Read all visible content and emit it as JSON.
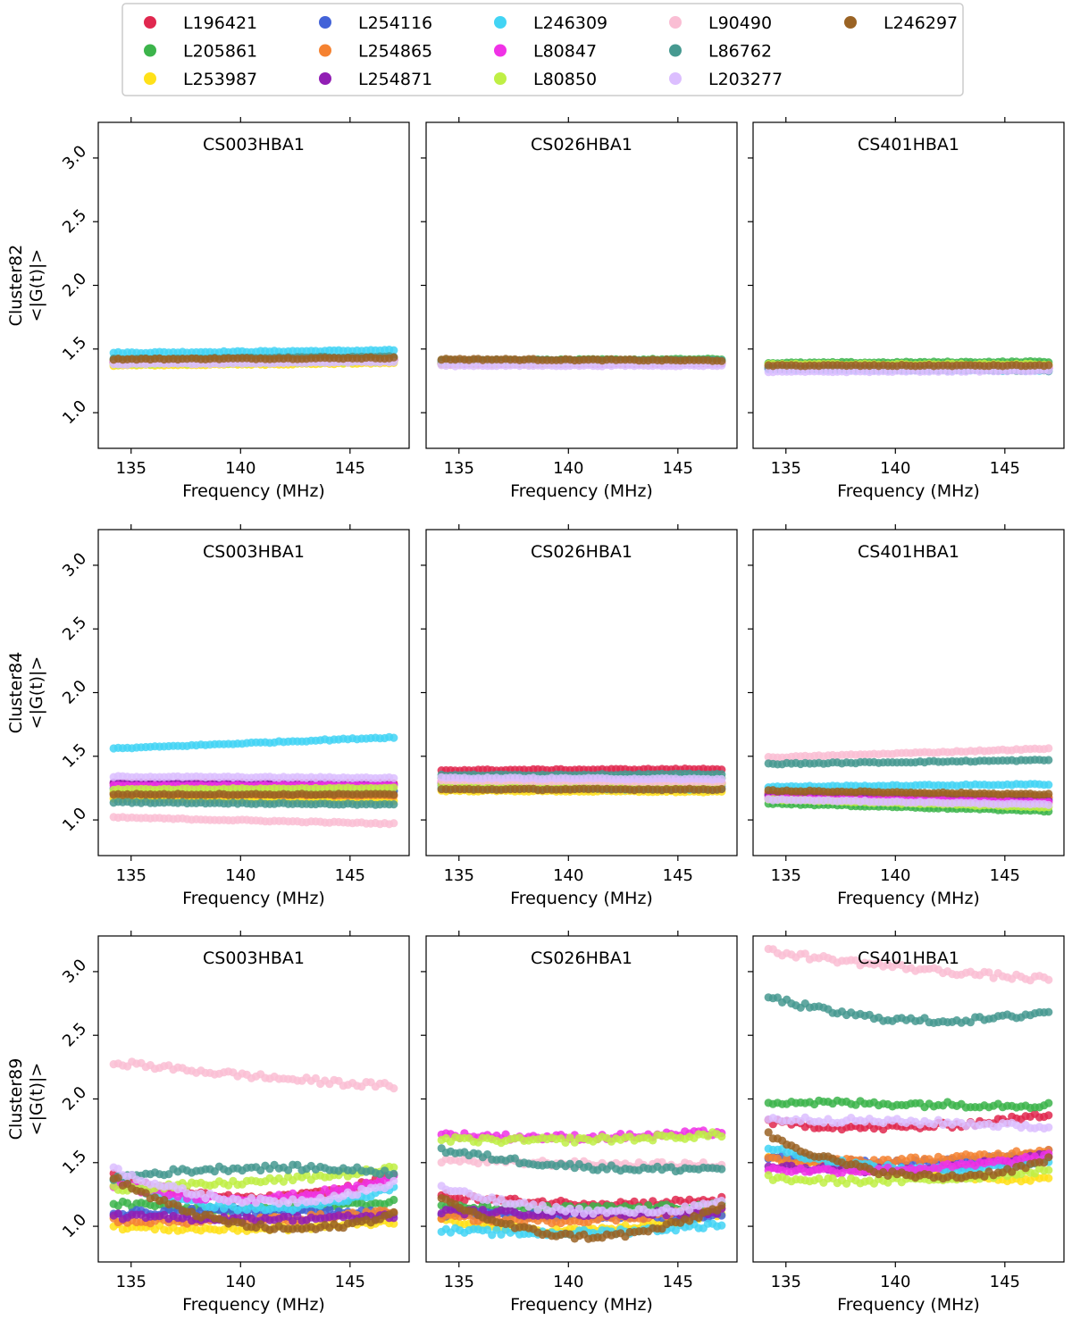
{
  "figure": {
    "freq_label": "Frequency (MHz)",
    "ylabel_suffix": "<|G(t)|>",
    "x_ticks": [
      135,
      140,
      145
    ],
    "y_ticks": [
      1.0,
      1.5,
      2.0,
      2.5,
      3.0
    ],
    "xlim": [
      133.5,
      147.7
    ],
    "ylim": [
      0.72,
      3.28
    ]
  },
  "legend": {
    "placement": "top-center",
    "entries": [
      {
        "name": "L196421",
        "color": "#e0284f"
      },
      {
        "name": "L205861",
        "color": "#3cb44b"
      },
      {
        "name": "L253987",
        "color": "#ffe119"
      },
      {
        "name": "L254116",
        "color": "#4363d8"
      },
      {
        "name": "L254865",
        "color": "#f58231"
      },
      {
        "name": "L254871",
        "color": "#911eb4"
      },
      {
        "name": "L246309",
        "color": "#42d4f4"
      },
      {
        "name": "L80847",
        "color": "#f032e6"
      },
      {
        "name": "L80850",
        "color": "#bfef45"
      },
      {
        "name": "L90490",
        "color": "#fabed4"
      },
      {
        "name": "L86762",
        "color": "#469990"
      },
      {
        "name": "L203277",
        "color": "#dcbeff"
      },
      {
        "name": "L246297",
        "color": "#9a6324"
      }
    ]
  },
  "chart_data": {
    "type": "scatter",
    "x_range_mhz": [
      134.2,
      147.0
    ],
    "rows": [
      {
        "cluster": "Cluster82",
        "panels": [
          {
            "title": "CS003HBA1",
            "series": {
              "L196421": [
                1.4,
                1.42
              ],
              "L205861": [
                1.41,
                1.43
              ],
              "L253987": [
                1.37,
                1.39
              ],
              "L254116": [
                1.4,
                1.42
              ],
              "L254865": [
                1.39,
                1.41
              ],
              "L254871": [
                1.4,
                1.42
              ],
              "L246309": [
                1.47,
                1.49
              ],
              "L80847": [
                1.4,
                1.41
              ],
              "L80850": [
                1.38,
                1.4
              ],
              "L90490": [
                1.41,
                1.43
              ],
              "L86762": [
                1.42,
                1.44
              ],
              "L203277": [
                1.38,
                1.4
              ],
              "L246297": [
                1.42,
                1.43
              ]
            }
          },
          {
            "title": "CS026HBA1",
            "series": {
              "L196421": [
                1.4,
                1.4
              ],
              "L205861": [
                1.41,
                1.42
              ],
              "L253987": [
                1.38,
                1.39
              ],
              "L254116": [
                1.39,
                1.4
              ],
              "L254865": [
                1.4,
                1.4
              ],
              "L254871": [
                1.39,
                1.39
              ],
              "L246309": [
                1.4,
                1.41
              ],
              "L80847": [
                1.39,
                1.39
              ],
              "L80850": [
                1.39,
                1.4
              ],
              "L90490": [
                1.4,
                1.4
              ],
              "L86762": [
                1.41,
                1.41
              ],
              "L203277": [
                1.37,
                1.37
              ],
              "L246297": [
                1.42,
                1.41
              ]
            }
          },
          {
            "title": "CS401HBA1",
            "series": {
              "L196421": [
                1.36,
                1.36
              ],
              "L205861": [
                1.39,
                1.4
              ],
              "L253987": [
                1.37,
                1.37
              ],
              "L254116": [
                1.35,
                1.35
              ],
              "L254865": [
                1.37,
                1.37
              ],
              "L254871": [
                1.35,
                1.35
              ],
              "L246309": [
                1.34,
                1.33
              ],
              "L80847": [
                1.35,
                1.35
              ],
              "L80850": [
                1.38,
                1.38
              ],
              "L90490": [
                1.36,
                1.36
              ],
              "L86762": [
                1.35,
                1.33
              ],
              "L203277": [
                1.32,
                1.33
              ],
              "L246297": [
                1.37,
                1.37
              ]
            }
          }
        ]
      },
      {
        "cluster": "Cluster84",
        "panels": [
          {
            "title": "CS003HBA1",
            "series": {
              "L196421": [
                1.29,
                1.29
              ],
              "L205861": [
                1.21,
                1.23
              ],
              "L253987": [
                1.17,
                1.15
              ],
              "L254116": [
                1.25,
                1.23
              ],
              "L254865": [
                1.21,
                1.19
              ],
              "L254871": [
                1.29,
                1.28
              ],
              "L246309": [
                1.56,
                1.65
              ],
              "L80847": [
                1.27,
                1.27
              ],
              "L80850": [
                1.24,
                1.25
              ],
              "L90490": [
                1.02,
                0.97
              ],
              "L86762": [
                1.14,
                1.12
              ],
              "L203277": [
                1.34,
                1.33
              ],
              "L246297": [
                1.2,
                1.2
              ]
            }
          },
          {
            "title": "CS026HBA1",
            "series": {
              "L196421": [
                1.39,
                1.4
              ],
              "L205861": [
                1.33,
                1.33
              ],
              "L253987": [
                1.23,
                1.22
              ],
              "L254116": [
                1.27,
                1.26
              ],
              "L254865": [
                1.25,
                1.25
              ],
              "L254871": [
                1.29,
                1.29
              ],
              "L246309": [
                1.25,
                1.24
              ],
              "L80847": [
                1.3,
                1.29
              ],
              "L80850": [
                1.28,
                1.28
              ],
              "L90490": [
                1.31,
                1.3
              ],
              "L86762": [
                1.35,
                1.36
              ],
              "L203277": [
                1.33,
                1.32
              ],
              "L246297": [
                1.24,
                1.24
              ]
            }
          },
          {
            "title": "CS401HBA1",
            "series": {
              "L196421": [
                1.21,
                1.18
              ],
              "L205861": [
                1.13,
                1.07
              ],
              "L253987": [
                1.2,
                1.13
              ],
              "L254116": [
                1.2,
                1.16
              ],
              "L254865": [
                1.22,
                1.18
              ],
              "L254871": [
                1.19,
                1.15
              ],
              "L246309": [
                1.26,
                1.28
              ],
              "L80847": [
                1.17,
                1.14
              ],
              "L80850": [
                1.16,
                1.1
              ],
              "L90490": [
                1.49,
                1.56
              ],
              "L86762": [
                1.44,
                1.47
              ],
              "L203277": [
                1.16,
                1.12
              ],
              "L246297": [
                1.23,
                1.2
              ]
            }
          }
        ]
      },
      {
        "cluster": "Cluster89",
        "panels": [
          {
            "title": "CS003HBA1",
            "series": {
              "L196421": [
                1.4,
                1.22,
                1.4
              ],
              "L205861": [
                1.18,
                1.14,
                1.2
              ],
              "L253987": [
                1.0,
                0.98,
                1.04
              ],
              "L254116": [
                1.1,
                1.12,
                1.1
              ],
              "L254865": [
                1.05,
                1.05,
                1.12
              ],
              "L254871": [
                1.08,
                1.06,
                1.08
              ],
              "L246309": [
                1.36,
                1.14,
                1.3
              ],
              "L80847": [
                1.33,
                1.22,
                1.38
              ],
              "L80850": [
                1.3,
                1.35,
                1.45
              ],
              "L90490": [
                2.29,
                2.18,
                2.1
              ],
              "L86762": [
                1.38,
                1.46,
                1.42
              ],
              "L203277": [
                1.45,
                1.2,
                1.34
              ],
              "L246297": [
                1.38,
                1.0,
                1.1
              ]
            }
          },
          {
            "title": "CS026HBA1",
            "series": {
              "L196421": [
                1.24,
                1.18,
                1.21
              ],
              "L205861": [
                1.15,
                1.14,
                1.16
              ],
              "L253987": [
                1.05,
                0.97,
                1.1
              ],
              "L254116": [
                1.1,
                1.08,
                1.08
              ],
              "L254865": [
                1.08,
                1.05,
                1.15
              ],
              "L254871": [
                1.12,
                1.1,
                1.12
              ],
              "L246309": [
                0.97,
                0.95,
                1.02
              ],
              "L80847": [
                1.72,
                1.7,
                1.74
              ],
              "L80850": [
                1.68,
                1.68,
                1.72
              ],
              "L90490": [
                1.52,
                1.49,
                1.48
              ],
              "L86762": [
                1.6,
                1.47,
                1.46
              ],
              "L203277": [
                1.3,
                1.12,
                1.18
              ],
              "L246297": [
                1.22,
                0.92,
                1.16
              ]
            }
          },
          {
            "title": "CS401HBA1",
            "series": {
              "L196421": [
                1.82,
                1.78,
                1.88
              ],
              "L205861": [
                1.98,
                1.96,
                1.95
              ],
              "L253987": [
                1.55,
                1.42,
                1.37
              ],
              "L254116": [
                1.55,
                1.5,
                1.58
              ],
              "L254865": [
                1.52,
                1.52,
                1.6
              ],
              "L254871": [
                1.48,
                1.45,
                1.56
              ],
              "L246309": [
                1.62,
                1.45,
                1.52
              ],
              "L80847": [
                1.45,
                1.45,
                1.55
              ],
              "L80850": [
                1.38,
                1.36,
                1.45
              ],
              "L90490": [
                3.16,
                3.03,
                2.94
              ],
              "L86762": [
                2.8,
                2.62,
                2.69
              ],
              "L203277": [
                1.84,
                1.82,
                1.78
              ],
              "L246297": [
                1.72,
                1.4,
                1.52
              ]
            }
          }
        ]
      }
    ]
  }
}
